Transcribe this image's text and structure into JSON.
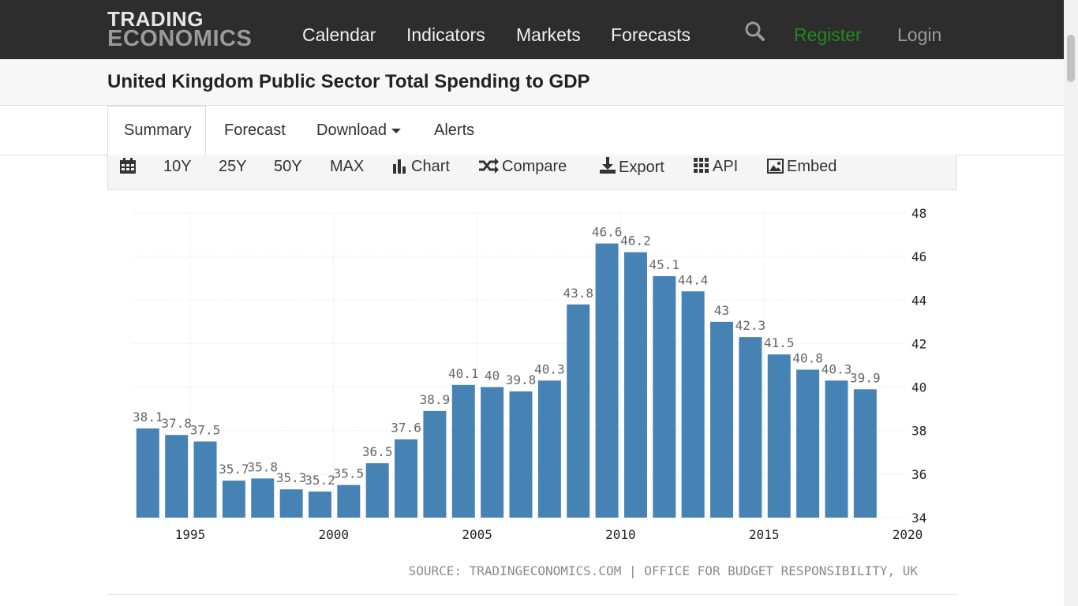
{
  "header": {
    "logo_line1": "TRADING",
    "logo_line2": "ECONOMICS",
    "nav": [
      "Calendar",
      "Indicators",
      "Markets",
      "Forecasts"
    ],
    "search_icon": "search-icon",
    "register": "Register",
    "login": "Login"
  },
  "page": {
    "title": "United Kingdom Public Sector Total Spending to GDP"
  },
  "tabs": [
    {
      "label": "Summary",
      "active": true
    },
    {
      "label": "Forecast",
      "active": false
    },
    {
      "label": "Download",
      "active": false,
      "dropdown": true
    },
    {
      "label": "Alerts",
      "active": false
    }
  ],
  "toolbar": {
    "calendar_icon": "calendar-icon",
    "ranges": [
      "10Y",
      "25Y",
      "50Y",
      "MAX"
    ],
    "chart": "Chart",
    "compare": "Compare",
    "export": "Export",
    "api": "API",
    "embed": "Embed"
  },
  "colors": {
    "bar": "#4682b4",
    "register": "#1f8a1f",
    "header_bg": "#2d2d2d"
  },
  "chart_data": {
    "type": "bar",
    "x": [
      1994,
      1995,
      1996,
      1997,
      1998,
      1999,
      2000,
      2001,
      2002,
      2003,
      2004,
      2005,
      2006,
      2007,
      2008,
      2009,
      2010,
      2011,
      2012,
      2013,
      2014,
      2015,
      2016,
      2017,
      2018,
      2019
    ],
    "values": [
      38.1,
      37.8,
      37.5,
      35.7,
      35.8,
      35.3,
      35.2,
      35.5,
      36.5,
      37.6,
      38.9,
      40.1,
      40,
      39.8,
      40.3,
      43.8,
      46.6,
      46.2,
      45.1,
      44.4,
      43,
      42.3,
      41.5,
      40.8,
      40.3,
      39.9
    ],
    "x_ticks": [
      "1995",
      "2000",
      "2005",
      "2010",
      "2015",
      "2020"
    ],
    "y_ticks": [
      "34",
      "36",
      "38",
      "40",
      "42",
      "44",
      "46",
      "48"
    ],
    "ylim": [
      34,
      48
    ],
    "y_axis_side": "right",
    "grid": true,
    "source": "SOURCE: TRADINGECONOMICS.COM | OFFICE FOR BUDGET RESPONSIBILITY, UK"
  }
}
